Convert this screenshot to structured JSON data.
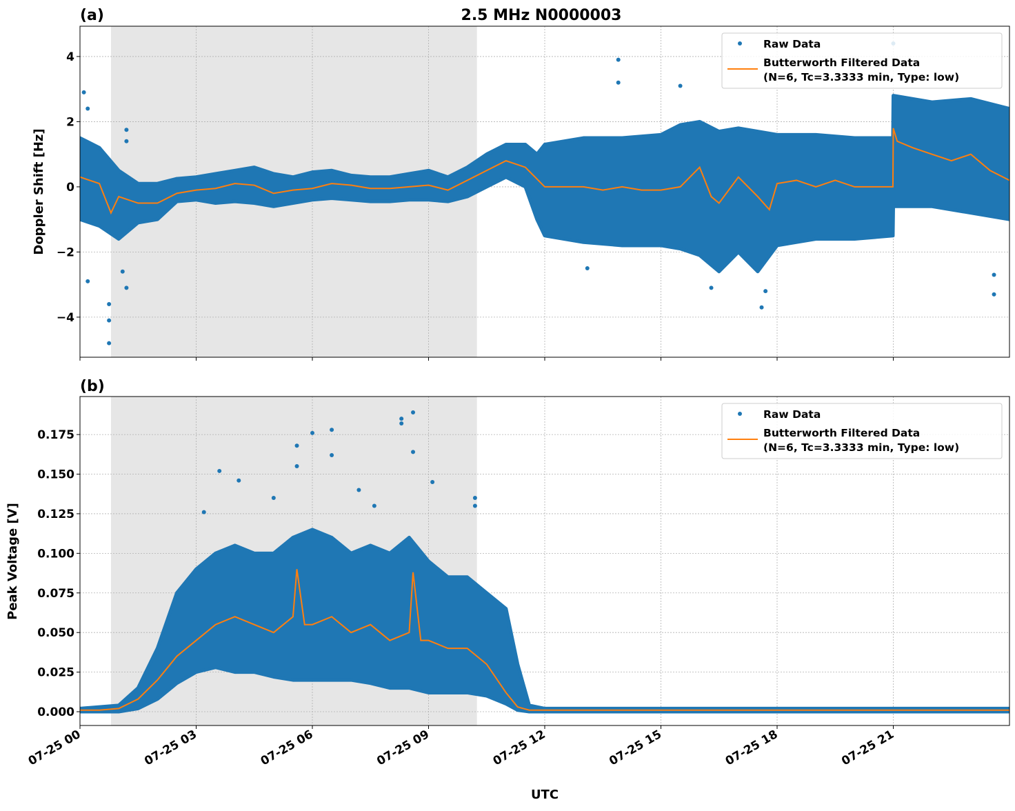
{
  "title": "2.5 MHz N0000003",
  "colors": {
    "raw": "#1f77b4",
    "filtered": "#ff7f0e",
    "shade": "#e6e6e6",
    "grid": "#b0b0b0"
  },
  "x_label": "UTC",
  "x_ticks": [
    "07-25 00",
    "07-25 03",
    "07-25 06",
    "07-25 09",
    "07-25 12",
    "07-25 15",
    "07-25 18",
    "07-25 21"
  ],
  "legend": {
    "raw": "Raw Data",
    "filtered_line1": "Butterworth Filtered Data",
    "filtered_line2": "(N=6, Tc=3.3333 min, Type: low)"
  },
  "chart_data": [
    {
      "panel_label": "(a)",
      "type": "scatter+line",
      "ylabel": "Doppler Shift [Hz]",
      "x_unit": "hours UTC on 07-25",
      "xlim": [
        0,
        24
      ],
      "ylim": [
        -5.23,
        4.93
      ],
      "y_ticks": [
        -4,
        -2,
        0,
        2,
        4
      ],
      "y_tick_labels": [
        "−4",
        "−2",
        "0",
        "2",
        "4"
      ],
      "grid": true,
      "legend_position": "upper right",
      "shaded_span_hours": [
        0.8,
        10.25
      ],
      "raw_envelope": {
        "x": [
          0,
          0.5,
          1,
          1.5,
          2,
          2.5,
          3,
          3.5,
          4,
          4.5,
          5,
          5.5,
          6,
          6.5,
          7,
          7.5,
          8,
          8.5,
          9,
          9.5,
          10,
          10.5,
          11,
          11.5,
          11.8,
          12,
          13,
          14,
          15,
          15.5,
          16,
          16.5,
          17,
          17.5,
          18,
          19,
          20,
          20.99,
          21,
          22,
          23,
          24
        ],
        "min": [
          -1.0,
          -1.2,
          -1.6,
          -1.1,
          -1.0,
          -0.45,
          -0.4,
          -0.5,
          -0.45,
          -0.5,
          -0.6,
          -0.5,
          -0.4,
          -0.35,
          -0.4,
          -0.45,
          -0.45,
          -0.4,
          -0.4,
          -0.45,
          -0.3,
          0.0,
          0.3,
          0.0,
          -1.0,
          -1.5,
          -1.7,
          -1.8,
          -1.8,
          -1.9,
          -2.1,
          -2.6,
          -2.0,
          -2.6,
          -1.8,
          -1.6,
          -1.6,
          -1.5,
          -0.6,
          -0.6,
          -0.8,
          -1.0
        ],
        "max": [
          1.5,
          1.2,
          0.5,
          0.1,
          0.1,
          0.25,
          0.3,
          0.4,
          0.5,
          0.6,
          0.4,
          0.3,
          0.45,
          0.5,
          0.35,
          0.3,
          0.3,
          0.4,
          0.5,
          0.3,
          0.6,
          1.0,
          1.3,
          1.3,
          1.0,
          1.3,
          1.5,
          1.5,
          1.6,
          1.9,
          2.0,
          1.7,
          1.8,
          1.7,
          1.6,
          1.6,
          1.5,
          1.5,
          2.8,
          2.6,
          2.7,
          2.4
        ]
      },
      "raw_outliers": [
        [
          0.1,
          2.9
        ],
        [
          0.2,
          2.4
        ],
        [
          0.2,
          -2.9
        ],
        [
          0.75,
          -4.8
        ],
        [
          0.75,
          -4.1
        ],
        [
          0.75,
          -3.6
        ],
        [
          1.2,
          1.75
        ],
        [
          1.2,
          1.4
        ],
        [
          1.2,
          -3.1
        ],
        [
          1.1,
          -2.6
        ],
        [
          13.9,
          3.9
        ],
        [
          13.9,
          3.2
        ],
        [
          15.5,
          3.1
        ],
        [
          17.6,
          -3.7
        ],
        [
          17.7,
          -3.2
        ],
        [
          21.0,
          4.4
        ],
        [
          23.6,
          -3.3
        ],
        [
          23.6,
          -2.7
        ],
        [
          13.1,
          -2.5
        ],
        [
          16.3,
          -3.1
        ]
      ],
      "filtered": {
        "x": [
          0,
          0.5,
          0.8,
          1,
          1.5,
          2,
          2.5,
          3,
          3.5,
          4,
          4.5,
          5,
          5.5,
          6,
          6.5,
          7,
          7.5,
          8,
          8.5,
          9,
          9.5,
          10,
          10.5,
          11,
          11.5,
          12,
          12.5,
          13,
          13.5,
          14,
          14.5,
          15,
          15.5,
          16,
          16.3,
          16.5,
          17,
          17.5,
          17.8,
          18,
          18.5,
          19,
          19.5,
          20,
          20.5,
          20.99,
          21.0,
          21.1,
          21.5,
          22,
          22.5,
          23,
          23.5,
          24
        ],
        "y": [
          0.3,
          0.1,
          -0.8,
          -0.3,
          -0.5,
          -0.5,
          -0.2,
          -0.1,
          -0.05,
          0.1,
          0.05,
          -0.2,
          -0.1,
          -0.05,
          0.1,
          0.05,
          -0.05,
          -0.05,
          0.0,
          0.05,
          -0.1,
          0.2,
          0.5,
          0.8,
          0.6,
          0.0,
          0.0,
          0.0,
          -0.1,
          0.0,
          -0.1,
          -0.1,
          0.0,
          0.6,
          -0.3,
          -0.5,
          0.3,
          -0.3,
          -0.7,
          0.1,
          0.2,
          0.0,
          0.2,
          0.0,
          0.0,
          0.0,
          1.8,
          1.4,
          1.2,
          1.0,
          0.8,
          1.0,
          0.5,
          0.2
        ]
      }
    },
    {
      "panel_label": "(b)",
      "type": "scatter+line",
      "ylabel": "Peak Voltage [V]",
      "x_unit": "hours UTC on 07-25",
      "xlim": [
        0,
        24
      ],
      "ylim": [
        -0.0087,
        0.199
      ],
      "y_ticks": [
        0,
        0.025,
        0.05,
        0.075,
        0.1,
        0.125,
        0.15,
        0.175
      ],
      "y_tick_labels": [
        "0.000",
        "0.025",
        "0.050",
        "0.075",
        "0.100",
        "0.125",
        "0.150",
        "0.175"
      ],
      "grid": true,
      "legend_position": "upper right",
      "shaded_span_hours": [
        0.8,
        10.25
      ],
      "raw_envelope": {
        "x": [
          0,
          1,
          1.5,
          2,
          2.5,
          3,
          3.5,
          4,
          4.5,
          5,
          5.5,
          6,
          6.5,
          7,
          7.5,
          8,
          8.5,
          9,
          9.5,
          10,
          10.5,
          11,
          11.3,
          11.6,
          12,
          24
        ],
        "min": [
          0,
          0,
          0.002,
          0.008,
          0.018,
          0.025,
          0.028,
          0.025,
          0.025,
          0.022,
          0.02,
          0.02,
          0.02,
          0.02,
          0.018,
          0.015,
          0.015,
          0.012,
          0.012,
          0.012,
          0.01,
          0.005,
          0.001,
          0,
          0,
          0
        ],
        "max": [
          0.002,
          0.004,
          0.015,
          0.04,
          0.075,
          0.09,
          0.1,
          0.105,
          0.1,
          0.1,
          0.11,
          0.115,
          0.11,
          0.1,
          0.105,
          0.1,
          0.11,
          0.095,
          0.085,
          0.085,
          0.075,
          0.065,
          0.03,
          0.004,
          0.002,
          0.002
        ]
      },
      "raw_outliers": [
        [
          3.2,
          0.126
        ],
        [
          3.6,
          0.152
        ],
        [
          4.1,
          0.146
        ],
        [
          5.6,
          0.168
        ],
        [
          5.6,
          0.155
        ],
        [
          6.0,
          0.176
        ],
        [
          6.5,
          0.178
        ],
        [
          6.5,
          0.162
        ],
        [
          7.2,
          0.14
        ],
        [
          8.3,
          0.185
        ],
        [
          8.3,
          0.182
        ],
        [
          8.6,
          0.189
        ],
        [
          8.6,
          0.164
        ],
        [
          9.1,
          0.145
        ],
        [
          10.2,
          0.135
        ],
        [
          10.2,
          0.13
        ],
        [
          5.0,
          0.135
        ],
        [
          7.6,
          0.13
        ]
      ],
      "filtered": {
        "x": [
          0,
          0.5,
          1,
          1.5,
          2,
          2.5,
          3,
          3.5,
          4,
          4.5,
          5,
          5.5,
          5.6,
          5.8,
          6,
          6.5,
          7,
          7.5,
          8,
          8.5,
          8.6,
          8.8,
          9,
          9.5,
          10,
          10.5,
          11,
          11.3,
          11.6,
          12,
          24
        ],
        "y": [
          0.001,
          0.001,
          0.002,
          0.008,
          0.02,
          0.035,
          0.045,
          0.055,
          0.06,
          0.055,
          0.05,
          0.06,
          0.09,
          0.055,
          0.055,
          0.06,
          0.05,
          0.055,
          0.045,
          0.05,
          0.088,
          0.045,
          0.045,
          0.04,
          0.04,
          0.03,
          0.012,
          0.003,
          0.001,
          0.001,
          0.001
        ]
      }
    }
  ]
}
